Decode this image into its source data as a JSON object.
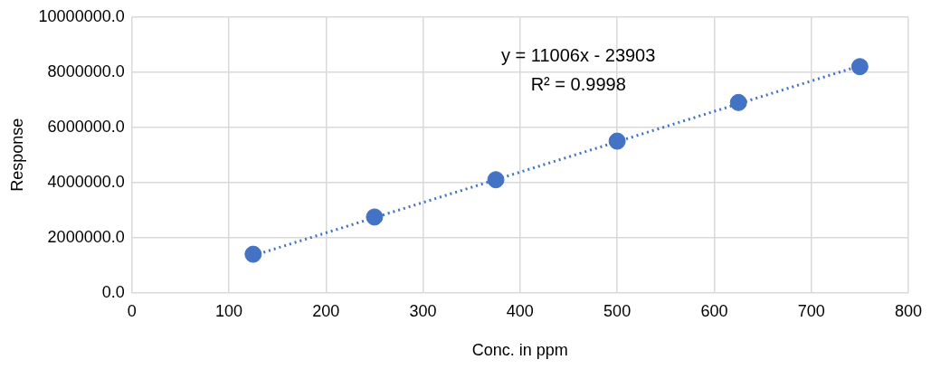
{
  "chart_data": {
    "type": "scatter",
    "xlabel": "Conc. in ppm",
    "ylabel": "Response",
    "x": [
      125,
      250,
      375,
      500,
      625,
      750
    ],
    "series": [
      {
        "type": "scatter",
        "color": "#4472c4",
        "values": [
          1400000,
          2750000,
          4100000,
          5500000,
          6900000,
          8200000
        ],
        "marker": "circle"
      },
      {
        "type": "line",
        "color": "#4472c4",
        "x": [
          125,
          750
        ],
        "values": [
          1350000,
          8230000
        ],
        "line_style": "dotted",
        "marker": "none"
      }
    ],
    "xlim": [
      0,
      800
    ],
    "xticks": [
      0,
      100,
      200,
      300,
      400,
      500,
      600,
      700,
      800
    ],
    "ylim": [
      0,
      10000000
    ],
    "yticks": [
      {
        "value": 0,
        "label": "0.0"
      },
      {
        "value": 2000000,
        "label": "2000000.0"
      },
      {
        "value": 4000000,
        "label": "4000000.0"
      },
      {
        "value": 6000000,
        "label": "6000000.0"
      },
      {
        "value": 8000000,
        "label": "8000000.0"
      },
      {
        "value": 10000000,
        "label": "10000000.0"
      }
    ],
    "annotations": [
      "y = 11006x - 23903",
      "R² = 0.9998"
    ],
    "grid": true,
    "legend": false
  }
}
